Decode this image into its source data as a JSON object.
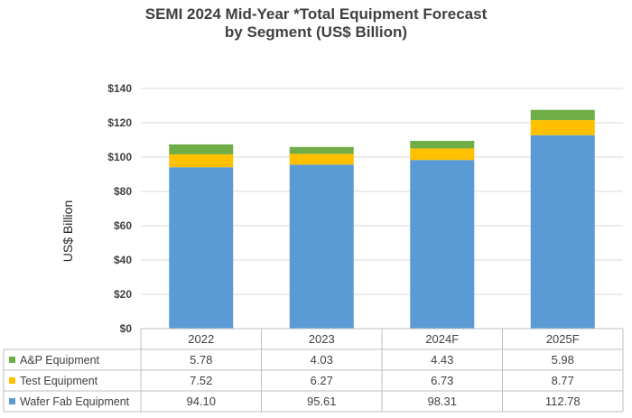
{
  "chart_data": {
    "type": "bar",
    "stacked": true,
    "title": [
      "SEMI 2024 Mid-Year *Total Equipment Forecast",
      "by Segment (US$ Billion)"
    ],
    "xlabel": "",
    "ylabel": "US$ Billion",
    "ylim": [
      0,
      140
    ],
    "yticks": [
      "$0",
      "$20",
      "$40",
      "$60",
      "$80",
      "$100",
      "$120",
      "$140"
    ],
    "ytick_values": [
      0,
      20,
      40,
      60,
      80,
      100,
      120,
      140
    ],
    "categories": [
      "2022",
      "2023",
      "2024F",
      "2025F"
    ],
    "grid": true,
    "legend": "data-table-left",
    "series": [
      {
        "name": "Wafer Fab Equipment",
        "color": "#5b9bd5",
        "values": [
          94.1,
          95.61,
          98.31,
          112.78
        ],
        "labels": [
          "94.10",
          "95.61",
          "98.31",
          "112.78"
        ]
      },
      {
        "name": "Test Equipment",
        "color": "#ffc000",
        "values": [
          7.52,
          6.27,
          6.73,
          8.77
        ],
        "labels": [
          "7.52",
          "6.27",
          "6.73",
          "8.77"
        ]
      },
      {
        "name": "A&P Equipment",
        "color": "#70ad47",
        "values": [
          5.78,
          4.03,
          4.43,
          5.98
        ],
        "labels": [
          "5.78",
          "4.03",
          "4.43",
          "5.98"
        ]
      }
    ]
  }
}
